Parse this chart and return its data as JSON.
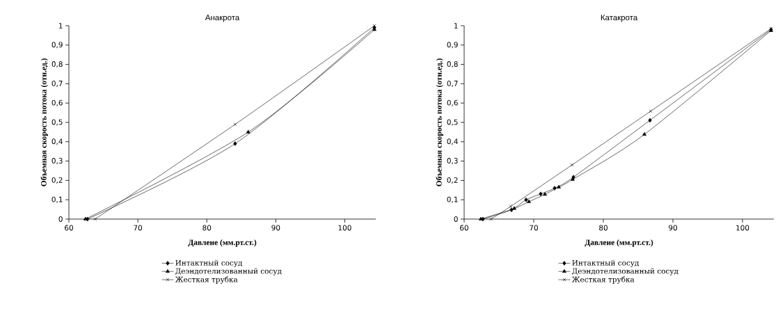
{
  "chart_data": [
    {
      "type": "line",
      "title": "Анакрота",
      "xlabel": "Давлеие (мм.рт.ст.)",
      "ylabel": "Объемная скорость потока (отн.ед.)",
      "xlim": [
        60,
        104.5
      ],
      "ylim": [
        0,
        1
      ],
      "xticks": [
        60,
        70,
        80,
        90,
        100
      ],
      "yticks": [
        0,
        {
          "value": 0.1,
          "label": "0,1"
        },
        {
          "value": 0.2,
          "label": "0,2"
        },
        {
          "value": 0.3,
          "label": "0,3"
        },
        {
          "value": 0.4,
          "label": "0,4"
        },
        {
          "value": 0.5,
          "label": "0,5"
        },
        {
          "value": 0.6,
          "label": "0,6"
        },
        {
          "value": 0.7,
          "label": "0,7"
        },
        {
          "value": 0.8,
          "label": "0,8"
        },
        {
          "value": 0.9,
          "label": "0,9"
        },
        1
      ],
      "legend": "bottom",
      "series": [
        {
          "name": "Интактный сосуд",
          "color": "#000000",
          "marker": "diamond",
          "x": [
            62.7,
            84.1,
            104.3
          ],
          "values": [
            0,
            0.39,
            0.99
          ]
        },
        {
          "name": "Деэндотелизованный сосуд",
          "color": "#000000",
          "marker": "triangle",
          "x": [
            62.4,
            86,
            104.3
          ],
          "values": [
            0,
            0.45,
            0.98
          ]
        },
        {
          "name": "Жесткая трубка",
          "color": "#000000",
          "marker": "cross",
          "x": [
            63.8,
            84.1,
            104.3
          ],
          "values": [
            0,
            0.49,
            1
          ]
        }
      ]
    },
    {
      "type": "line",
      "title": "Катакрота",
      "xlabel": "Давлеие (мм.рт.ст.)",
      "ylabel": "Объемная скорость потока (отн.ед.)",
      "xlim": [
        60,
        104.5
      ],
      "ylim": [
        0,
        1
      ],
      "xticks": [
        60,
        70,
        80,
        90,
        100
      ],
      "yticks": [
        0,
        {
          "value": 0.1,
          "label": "0,1"
        },
        {
          "value": 0.2,
          "label": "0,2"
        },
        {
          "value": 0.3,
          "label": "0,3"
        },
        {
          "value": 0.4,
          "label": "0,4"
        },
        {
          "value": 0.5,
          "label": "0,5"
        },
        {
          "value": 0.6,
          "label": "0,6"
        },
        {
          "value": 0.7,
          "label": "0,7"
        },
        {
          "value": 0.8,
          "label": "0,8"
        },
        {
          "value": 0.9,
          "label": "0,9"
        },
        1
      ],
      "legend": "bottom",
      "series": [
        {
          "name": "Интактный сосуд",
          "color": "#000000",
          "marker": "diamond",
          "x": [
            62.7,
            66.8,
            68.9,
            71,
            73,
            75.7,
            86.7,
            104.1
          ],
          "values": [
            0,
            0.048,
            0.1,
            0.13,
            0.16,
            0.217,
            0.511,
            0.98
          ]
        },
        {
          "name": "Деэндотелизованный сосуд",
          "color": "#000000",
          "marker": "triangle",
          "x": [
            62.4,
            67.2,
            69.3,
            71.6,
            73.6,
            75.6,
            85.9,
            104.1
          ],
          "values": [
            0,
            0.055,
            0.09,
            0.128,
            0.165,
            0.205,
            0.438,
            0.975
          ]
        },
        {
          "name": "Жесткая трубка",
          "color": "#000000",
          "marker": "cross",
          "x": [
            63.85,
            66.7,
            75.5,
            86.8,
            104.1
          ],
          "values": [
            0,
            0.066,
            0.28,
            0.558,
            0.985
          ]
        }
      ]
    }
  ]
}
